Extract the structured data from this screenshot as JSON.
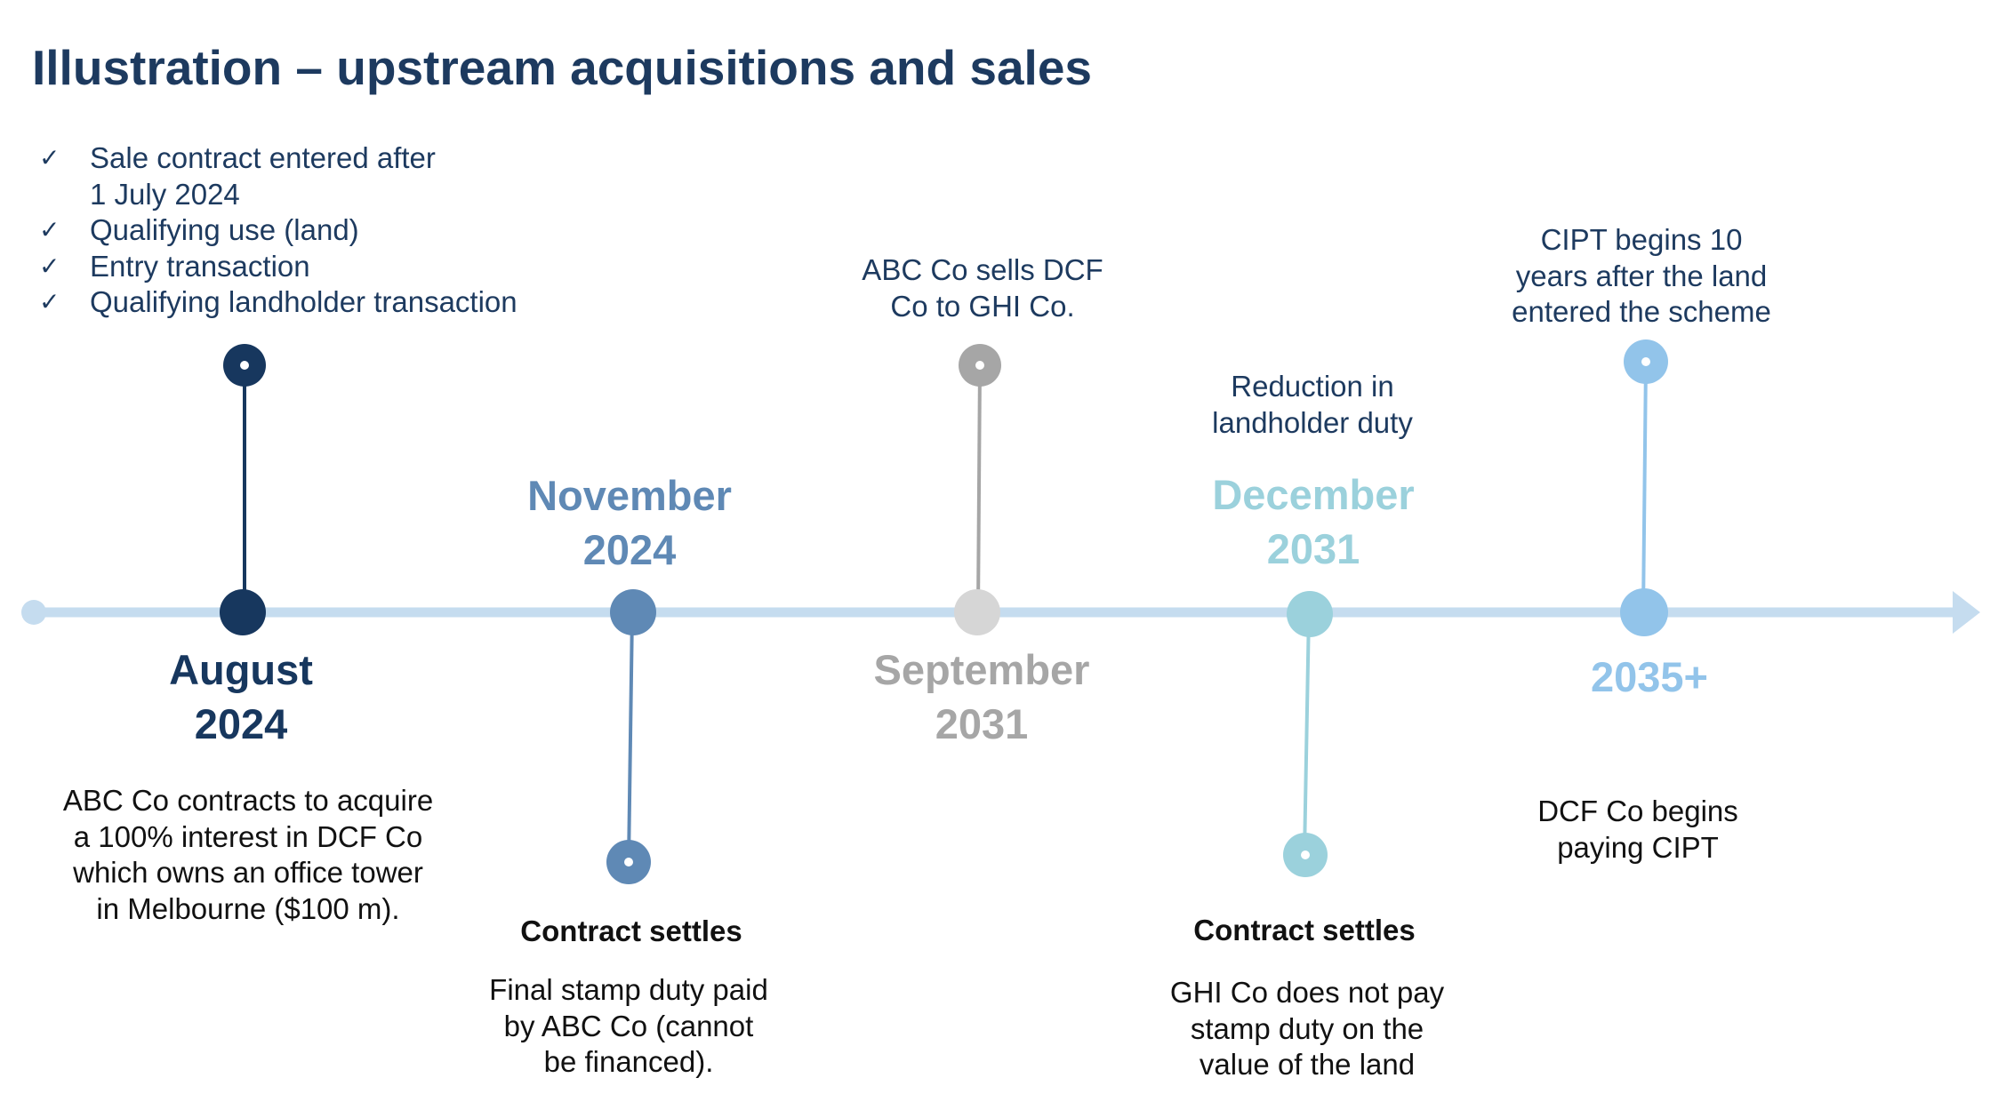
{
  "title": "Illustration – upstream acquisitions and sales",
  "checklist": [
    {
      "icon": "check-icon",
      "text": "Sale contract entered after",
      "text2": "1 July 2024"
    },
    {
      "icon": "check-icon",
      "text": "Qualifying use (land)"
    },
    {
      "icon": "check-icon",
      "text": "Entry transaction"
    },
    {
      "icon": "check-icon",
      "text": "Qualifying landholder transaction"
    }
  ],
  "colors": {
    "axis": "#c5dcef",
    "aug2024": "#17375e",
    "nov2024": "#5f89b5",
    "sep2031": "#a6a6a6",
    "sep2031_dot": "#d6d6d6",
    "dec2031": "#9bd1dc",
    "y2035": "#92c4ea"
  },
  "milestones": {
    "aug2024": {
      "date_line1": "August",
      "date_line2": "2024",
      "desc": [
        "ABC Co contracts to acquire",
        "a 100% interest in DCF Co",
        "which owns an office tower",
        "in Melbourne ($100 m)."
      ]
    },
    "nov2024": {
      "date_line1": "November",
      "date_line2": "2024",
      "heading": "Contract settles",
      "desc": [
        "Final stamp duty paid",
        "by ABC Co (cannot",
        "be financed)."
      ]
    },
    "sep2031": {
      "date_line1": "September",
      "date_line2": "2031",
      "desc": [
        "ABC Co sells DCF",
        "Co to GHI Co."
      ]
    },
    "dec2031": {
      "date_line1": "December",
      "date_line2": "2031",
      "note": [
        "Reduction in",
        "landholder duty"
      ],
      "heading": "Contract settles",
      "desc": [
        "GHI Co does not pay",
        "stamp duty on the",
        "value of the land"
      ]
    },
    "y2035": {
      "date_line1": "2035+",
      "note": [
        "CIPT begins 10",
        "years after the land",
        "entered the scheme"
      ],
      "desc": [
        "DCF Co begins",
        "paying CIPT"
      ]
    }
  }
}
